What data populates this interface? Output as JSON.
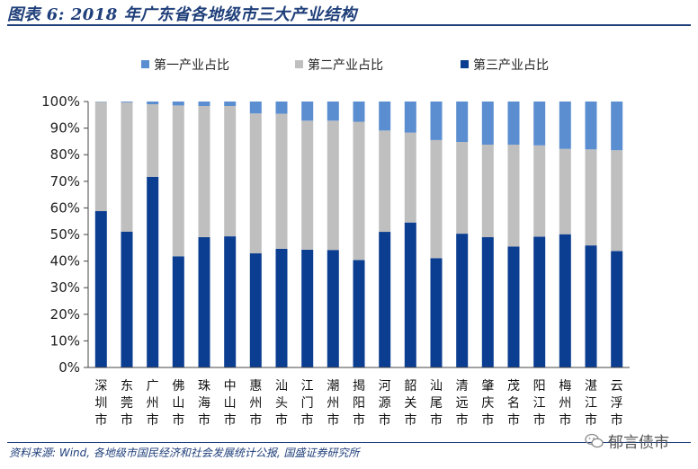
{
  "figure": {
    "title": "图表 6:  2018 年广东省各地级市三大产业结构",
    "source": "资料来源:  Wind, 各地级市国民经济和社会发展统计公报, 国盛证券研究所",
    "watermark": "郁言债市"
  },
  "chart_data": {
    "type": "bar",
    "stacked": true,
    "title": "",
    "xlabel": "",
    "ylabel": "",
    "ylim": [
      0,
      100
    ],
    "y_ticks": [
      "0%",
      "10%",
      "20%",
      "30%",
      "40%",
      "50%",
      "60%",
      "70%",
      "80%",
      "90%",
      "100%"
    ],
    "legend_position": "top",
    "grid": false,
    "categories": [
      "深圳市",
      "东莞市",
      "广州市",
      "佛山市",
      "珠海市",
      "中山市",
      "惠州市",
      "汕头市",
      "江门市",
      "潮州市",
      "揭阳市",
      "河源市",
      "韶关市",
      "汕尾市",
      "清远市",
      "肇庆市",
      "茂名市",
      "阳江市",
      "梅州市",
      "湛江市",
      "云浮市"
    ],
    "series": [
      {
        "name": "第一产业占比",
        "color": "#5b8ed0",
        "values": [
          0.1,
          0.3,
          1.0,
          1.5,
          1.7,
          1.7,
          4.5,
          4.6,
          7.2,
          7.2,
          7.6,
          10.9,
          11.7,
          14.5,
          15.2,
          16.2,
          16.2,
          16.5,
          17.8,
          18.0,
          18.3
        ]
      },
      {
        "name": "第二产业占比",
        "color": "#bfbfbf",
        "values": [
          41.1,
          48.6,
          27.3,
          56.7,
          49.3,
          49.0,
          52.6,
          50.8,
          48.5,
          48.6,
          52.0,
          38.1,
          33.8,
          44.4,
          34.5,
          34.8,
          38.3,
          34.3,
          32.1,
          36.1,
          37.9
        ]
      },
      {
        "name": "第三产业占比",
        "color": "#0b3d91",
        "values": [
          58.8,
          51.1,
          71.7,
          41.8,
          49.0,
          49.3,
          42.9,
          44.6,
          44.3,
          44.2,
          40.4,
          51.0,
          54.5,
          41.1,
          50.3,
          49.0,
          45.5,
          49.2,
          50.1,
          45.9,
          43.8
        ]
      }
    ]
  }
}
